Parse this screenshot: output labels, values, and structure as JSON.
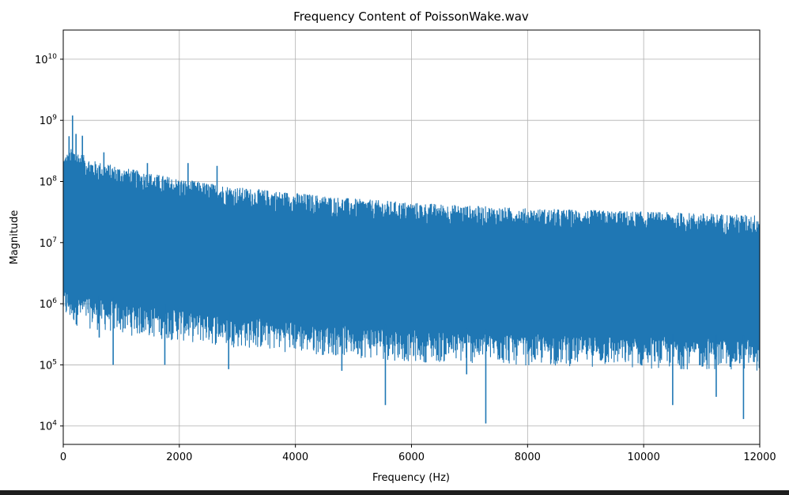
{
  "chart_data": {
    "type": "line",
    "title": "Frequency Content of PoissonWake.wav",
    "xlabel": "Frequency (Hz)",
    "ylabel": "Magnitude",
    "xlim": [
      0,
      12000
    ],
    "ylim": [
      5000,
      30000000000
    ],
    "yscale": "log",
    "grid": true,
    "x_ticks": [
      0,
      2000,
      4000,
      6000,
      8000,
      10000,
      12000
    ],
    "x_tick_labels": [
      "0",
      "2000",
      "4000",
      "6000",
      "8000",
      "10000",
      "12000"
    ],
    "y_ticks": [
      10000,
      100000,
      1000000,
      10000000,
      100000000,
      1000000000,
      10000000000
    ],
    "y_tick_labels": [
      {
        "base": "10",
        "exp": "4"
      },
      {
        "base": "10",
        "exp": "5"
      },
      {
        "base": "10",
        "exp": "6"
      },
      {
        "base": "10",
        "exp": "7"
      },
      {
        "base": "10",
        "exp": "8"
      },
      {
        "base": "10",
        "exp": "9"
      },
      {
        "base": "10",
        "exp": "10"
      }
    ],
    "series": [
      {
        "color": "#1f77b4",
        "envelope": {
          "x": [
            0,
            150,
            500,
            1000,
            2000,
            3000,
            4000,
            5000,
            6000,
            7000,
            8000,
            9000,
            10000,
            11000,
            12000
          ],
          "upper": [
            250000000,
            350000000,
            220000000,
            170000000,
            110000000,
            80000000,
            65000000,
            52000000,
            45000000,
            40000000,
            36000000,
            34000000,
            32000000,
            30000000,
            28000000
          ],
          "lower": [
            1500000,
            1300000,
            1100000,
            900000,
            700000,
            550000,
            450000,
            380000,
            320000,
            300000,
            280000,
            270000,
            250000,
            240000,
            230000
          ]
        },
        "spikes_up": [
          [
            100,
            550000000
          ],
          [
            160,
            1200000000
          ],
          [
            220,
            600000000
          ],
          [
            330,
            560000000
          ],
          [
            700,
            300000000
          ],
          [
            1450,
            200000000
          ],
          [
            2150,
            200000000
          ],
          [
            2650,
            180000000
          ]
        ],
        "spikes_down": [
          [
            620,
            280000
          ],
          [
            860,
            100000
          ],
          [
            1750,
            100000
          ],
          [
            2850,
            85000
          ],
          [
            4800,
            80000
          ],
          [
            5550,
            22000
          ],
          [
            6950,
            70000
          ],
          [
            7280,
            11000
          ],
          [
            10500,
            22000
          ],
          [
            11250,
            30000
          ],
          [
            11720,
            13000
          ]
        ]
      }
    ]
  }
}
